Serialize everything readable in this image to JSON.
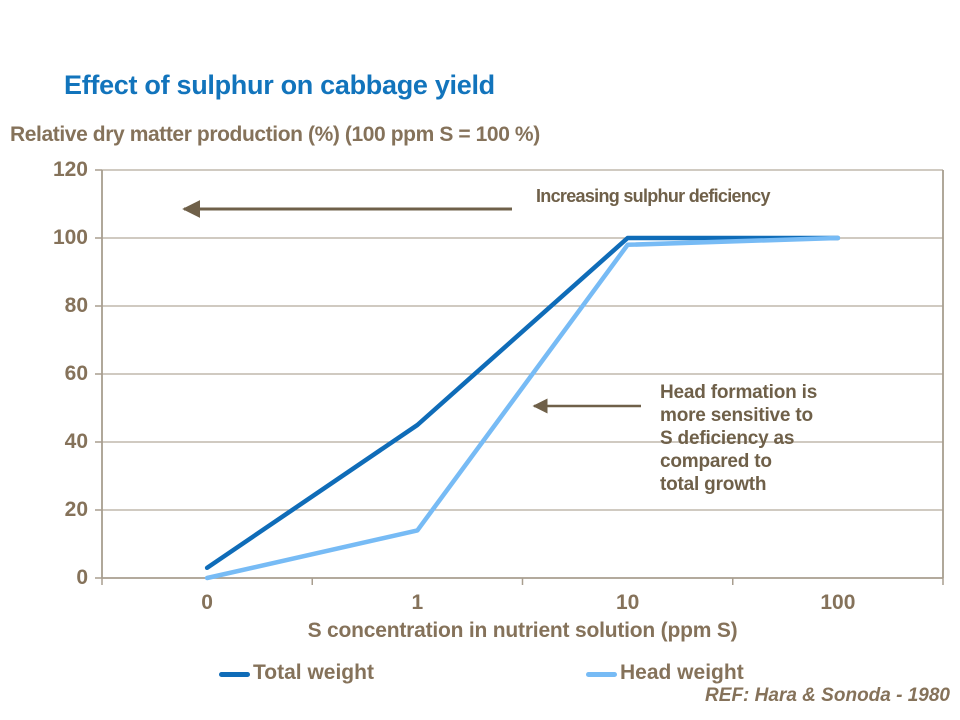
{
  "slide": {
    "title": "Effect of sulphur on cabbage yield",
    "subtitle": "Relative dry matter production (%) (100 ppm S = 100 %)",
    "reference": "REF: Hara & Sonoda - 1980"
  },
  "chart_data": {
    "type": "line",
    "title": "Effect of sulphur on cabbage yield",
    "ylabel": "Relative dry matter production (%) (100 ppm S = 100 %)",
    "xlabel": "S concentration in nutrient solution (ppm S)",
    "x_axis_type": "category",
    "categories": [
      "0",
      "1",
      "10",
      "100"
    ],
    "series": [
      {
        "name": "Total weight",
        "color": "#0F6CB8",
        "values": [
          3,
          45,
          100,
          100
        ]
      },
      {
        "name": "Head weight",
        "color": "#77BBF5",
        "values": [
          0,
          14,
          98,
          100
        ]
      }
    ],
    "ylim": [
      0,
      120
    ],
    "yticks": [
      0,
      20,
      40,
      60,
      80,
      100,
      120
    ],
    "grid": true,
    "legend_position": "bottom"
  },
  "annotations": {
    "increasing_deficiency": {
      "text": "Increasing sulphur deficiency"
    },
    "head_formation": {
      "lines": [
        "Head formation is",
        "more sensitive to",
        "S deficiency as",
        "compared to",
        "total growth"
      ]
    }
  },
  "legend": {
    "items": [
      {
        "label": "Total weight",
        "color": "#0F6CB8"
      },
      {
        "label": "Head weight",
        "color": "#77BBF5"
      }
    ]
  },
  "colors": {
    "title_blue": "#1274BC",
    "text_brown": "#85725A",
    "annotation_brown": "#6F6049",
    "grid_line": "#B3AA9C",
    "axis_border": "#A89E8F",
    "total_weight_line": "#0F6CB8",
    "head_weight_line": "#77BBF5",
    "background": "#FFFFFF"
  }
}
